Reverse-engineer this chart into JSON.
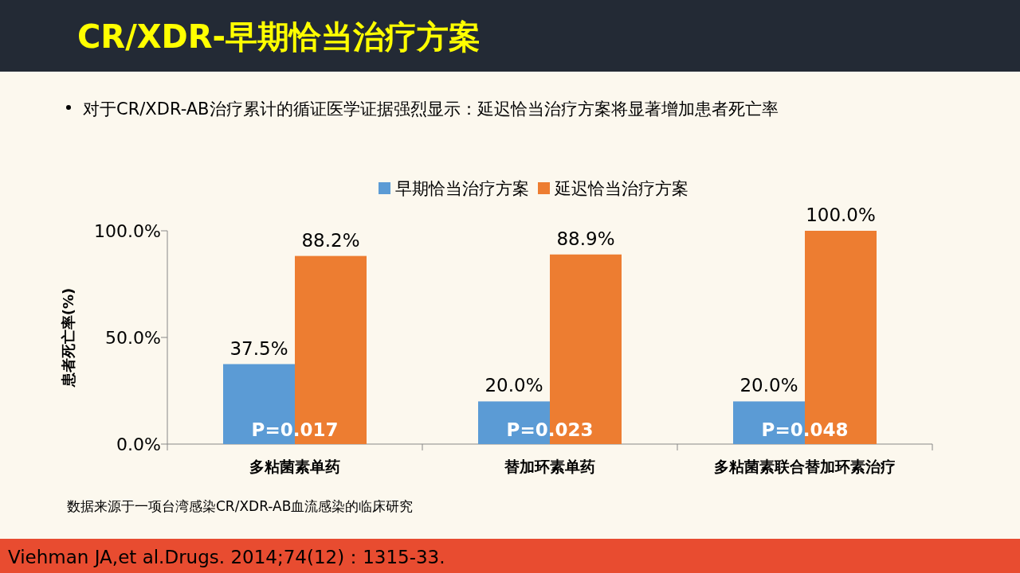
{
  "chart_data": {
    "type": "bar",
    "title": "CR/XDR-早期恰当治疗方案",
    "subtitle": "对于CR/XDR-AB治疗累计的循证医学证据强烈显示：延迟恰当治疗方案将显著增加患者死亡率",
    "ylabel": "患者死亡率(%)",
    "categories": [
      "多粘菌素单药",
      "替加环素单药",
      "多粘菌素联合替加环素治疗"
    ],
    "series": [
      {
        "name": "早期恰当治疗方案",
        "color": "#5b9bd5",
        "values": [
          37.5,
          20.0,
          20.0
        ],
        "value_labels": [
          "37.5%",
          "20.0%",
          "20.0%"
        ]
      },
      {
        "name": "延迟恰当治疗方案",
        "color": "#ed7d31",
        "values": [
          88.2,
          88.9,
          100.0
        ],
        "value_labels": [
          "88.2%",
          "88.9%",
          "100.0%"
        ]
      }
    ],
    "ylim": [
      0,
      100
    ],
    "yticks": [
      {
        "value": 0,
        "label": "0.0%"
      },
      {
        "value": 50,
        "label": "50.0%"
      },
      {
        "value": 100,
        "label": "100.0%"
      }
    ],
    "grid": false,
    "legend": "top",
    "annotations": [
      {
        "text": "P=0.017",
        "x": "多粘菌素单药"
      },
      {
        "text": "P=0.023",
        "x": "替加环素单药"
      },
      {
        "text": "P=0.048",
        "x": "多粘菌素联合替加环素治疗"
      },
      "数据来源于一项台湾感染CR/XDR-AB血流感染的临床研究",
      "Viehman JA,et al.Drugs. 2014;74(12)：1315-33."
    ]
  }
}
